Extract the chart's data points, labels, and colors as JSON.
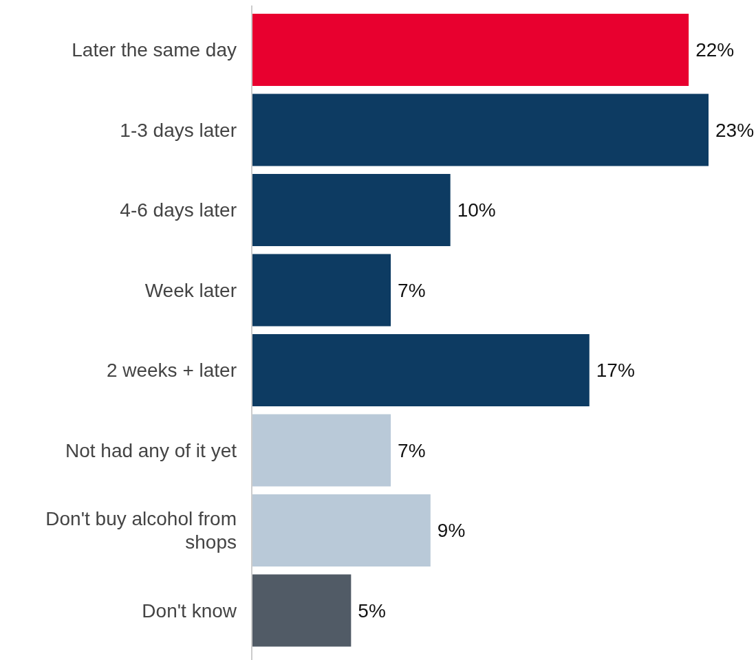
{
  "chart_data": {
    "type": "bar",
    "orientation": "horizontal",
    "categories": [
      "Later the same day",
      "1-3 days later",
      "4-6 days later",
      "Week later",
      "2 weeks + later",
      "Not had any of it yet",
      "Don't buy alcohol from shops",
      "Don't know"
    ],
    "values": [
      22,
      23,
      10,
      7,
      17,
      7,
      9,
      5
    ],
    "colors": [
      "#e8002f",
      "#0d3b62",
      "#0d3b62",
      "#0d3b62",
      "#0d3b62",
      "#b9c9d8",
      "#b9c9d8",
      "#515b66"
    ],
    "value_labels": [
      "22%",
      "23%",
      "10%",
      "7%",
      "17%",
      "7%",
      "9%",
      "5%"
    ]
  }
}
